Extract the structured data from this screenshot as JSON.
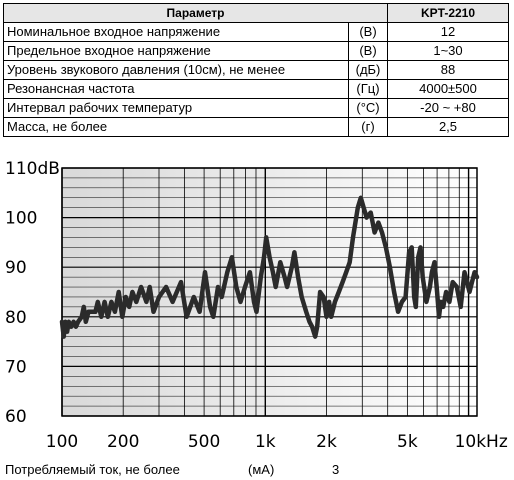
{
  "table": {
    "header": {
      "param": "Параметр",
      "model": "KPT-2210"
    },
    "rows": [
      {
        "param": "Номинальное входное напряжение",
        "unit": "(В)",
        "value": "12"
      },
      {
        "param": "Предельное входное напряжение",
        "unit": "(В)",
        "value": "1~30"
      },
      {
        "param": "Уровень звукового давления (10см), не менее",
        "unit": "(дБ)",
        "value": "88"
      },
      {
        "param": "Резонансная частота",
        "unit": "(Гц)",
        "value": "4000±500"
      },
      {
        "param": "Интервал рабочих температур",
        "unit": "(°C)",
        "value": "-20 ~ +80"
      },
      {
        "param": "Масса, не более",
        "unit": "(г)",
        "value": "2,5"
      }
    ]
  },
  "chart_data": {
    "type": "line",
    "x_scale": "log",
    "xlim": [
      100,
      11000
    ],
    "ylim": [
      60,
      110
    ],
    "grid": true,
    "y_ticks": [
      {
        "value": 110,
        "label": "110dB"
      },
      {
        "value": 100,
        "label": "100"
      },
      {
        "value": 90,
        "label": "90"
      },
      {
        "value": 80,
        "label": "80"
      },
      {
        "value": 70,
        "label": "70"
      },
      {
        "value": 60,
        "label": "60"
      }
    ],
    "x_ticks": [
      {
        "value": 100,
        "label": "100"
      },
      {
        "value": 200,
        "label": "200"
      },
      {
        "value": 500,
        "label": "500"
      },
      {
        "value": 1000,
        "label": "1k"
      },
      {
        "value": 2000,
        "label": "2k"
      },
      {
        "value": 5000,
        "label": "5k"
      },
      {
        "value": 10000,
        "label": "10kHz"
      }
    ],
    "series": [
      {
        "color": "#2b2b2b",
        "points": [
          [
            100,
            79
          ],
          [
            102,
            76
          ],
          [
            104,
            79
          ],
          [
            106,
            77
          ],
          [
            108,
            79
          ],
          [
            111,
            78
          ],
          [
            114,
            79
          ],
          [
            117,
            78
          ],
          [
            120,
            79
          ],
          [
            125,
            80
          ],
          [
            128,
            82
          ],
          [
            131,
            79
          ],
          [
            135,
            81
          ],
          [
            140,
            81
          ],
          [
            146,
            81
          ],
          [
            150,
            83
          ],
          [
            156,
            80
          ],
          [
            162,
            83
          ],
          [
            168,
            80
          ],
          [
            175,
            83
          ],
          [
            182,
            81
          ],
          [
            190,
            85
          ],
          [
            198,
            80
          ],
          [
            206,
            84
          ],
          [
            214,
            82
          ],
          [
            222,
            85
          ],
          [
            232,
            83
          ],
          [
            245,
            86
          ],
          [
            260,
            83
          ],
          [
            270,
            86
          ],
          [
            282,
            81
          ],
          [
            300,
            84
          ],
          [
            325,
            86
          ],
          [
            350,
            83
          ],
          [
            385,
            87
          ],
          [
            410,
            80
          ],
          [
            445,
            84
          ],
          [
            475,
            81
          ],
          [
            505,
            89
          ],
          [
            535,
            82
          ],
          [
            555,
            80
          ],
          [
            585,
            86
          ],
          [
            610,
            84
          ],
          [
            650,
            89
          ],
          [
            685,
            92
          ],
          [
            720,
            86
          ],
          [
            755,
            83
          ],
          [
            795,
            86
          ],
          [
            840,
            89
          ],
          [
            880,
            83
          ],
          [
            905,
            81
          ],
          [
            950,
            88
          ],
          [
            985,
            92
          ],
          [
            1010,
            96
          ],
          [
            1050,
            92
          ],
          [
            1090,
            89
          ],
          [
            1125,
            86
          ],
          [
            1185,
            91
          ],
          [
            1245,
            88
          ],
          [
            1280,
            86
          ],
          [
            1350,
            90
          ],
          [
            1390,
            93
          ],
          [
            1450,
            88
          ],
          [
            1510,
            84
          ],
          [
            1590,
            81
          ],
          [
            1650,
            79
          ],
          [
            1700,
            78
          ],
          [
            1760,
            76
          ],
          [
            1800,
            78
          ],
          [
            1860,
            85
          ],
          [
            1935,
            84
          ],
          [
            2000,
            80
          ],
          [
            2060,
            83
          ],
          [
            2110,
            80
          ],
          [
            2200,
            83
          ],
          [
            2300,
            85
          ],
          [
            2400,
            87
          ],
          [
            2500,
            89
          ],
          [
            2600,
            91
          ],
          [
            2700,
            96
          ],
          [
            2850,
            102
          ],
          [
            2950,
            104
          ],
          [
            3050,
            102
          ],
          [
            3150,
            100
          ],
          [
            3300,
            101
          ],
          [
            3450,
            97
          ],
          [
            3600,
            99
          ],
          [
            3750,
            97
          ],
          [
            3920,
            94
          ],
          [
            4100,
            90
          ],
          [
            4300,
            85
          ],
          [
            4500,
            81
          ],
          [
            4700,
            83
          ],
          [
            4900,
            84
          ],
          [
            5100,
            93
          ],
          [
            5250,
            94
          ],
          [
            5400,
            84
          ],
          [
            5500,
            82
          ],
          [
            5650,
            92
          ],
          [
            5800,
            94
          ],
          [
            5950,
            88
          ],
          [
            6200,
            83
          ],
          [
            6450,
            86
          ],
          [
            6600,
            89
          ],
          [
            6800,
            91
          ],
          [
            7000,
            85
          ],
          [
            7150,
            80
          ],
          [
            7300,
            83
          ],
          [
            7500,
            82
          ],
          [
            7750,
            85
          ],
          [
            8050,
            83
          ],
          [
            8350,
            87
          ],
          [
            8750,
            86
          ],
          [
            9150,
            82
          ],
          [
            9550,
            89
          ],
          [
            10100,
            85
          ],
          [
            10400,
            87
          ],
          [
            10700,
            89
          ],
          [
            11000,
            88
          ]
        ]
      }
    ]
  },
  "footer": {
    "label": "Потребляемый ток, не более",
    "unit": "(мА)",
    "value": "3"
  }
}
